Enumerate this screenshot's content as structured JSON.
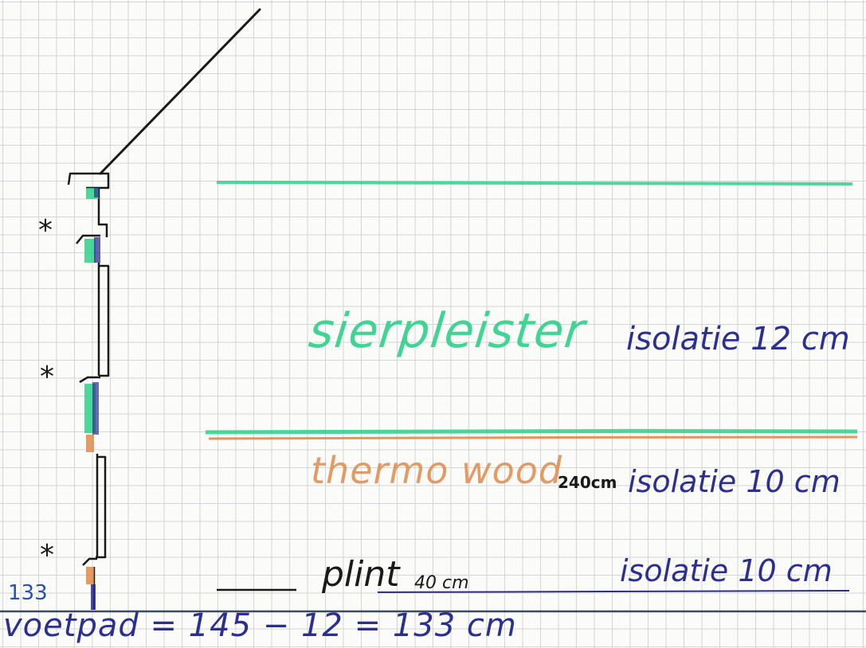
{
  "colors": {
    "ink_black": "#1a1a1a",
    "ink_blue": "#2b2f8f",
    "green": "#2fd08a",
    "orange": "#e08a4a",
    "grid": "#d3d6d8",
    "paper": "#fbfbf9"
  },
  "labels": {
    "sierpleister": "sierpleister",
    "thermowood": "thermo wood",
    "plint": "plint",
    "plint_dim": "40 cm",
    "dim_240": "240cm",
    "iso_1": "isolatie 12 cm",
    "iso_2": "isolatie 10 cm",
    "iso_3": "isolatie 10 cm",
    "level": "133",
    "formula": "voetpad = 145 − 12 = 133 cm"
  },
  "markers": {
    "asterisk_1": "*",
    "asterisk_2": "*",
    "asterisk_3": "*"
  }
}
